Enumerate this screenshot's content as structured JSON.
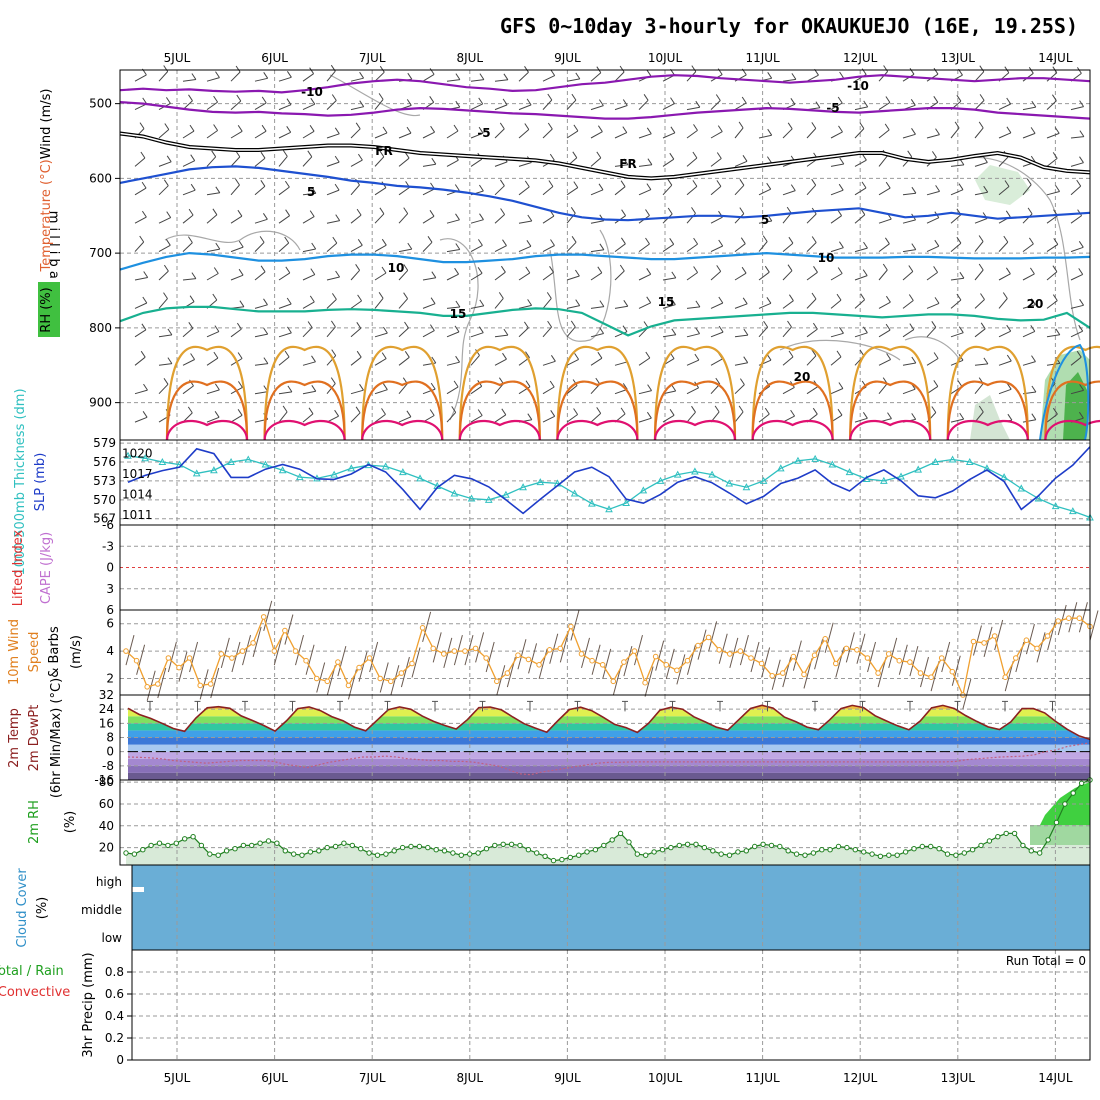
{
  "title": "GFS 0~10day 3-hourly for OKAUKUEJO (16E, 19.25S)",
  "colors": {
    "temp_m10": "#8a18b0",
    "temp_m5": "#8a18b0",
    "fr": "#000000",
    "temp_5": "#1e50d0",
    "temp_10": "#1e90e0",
    "temp_15": "#18b090",
    "temp_20": "#e0a030",
    "temp_25": "#e07020",
    "temp_30": "#e01070",
    "thickness": "#30c0c0",
    "slp": "#1e3cc8",
    "wind10m": "#f0a030",
    "lifted_zero": "#e04040",
    "rh": "#208020",
    "cloud": "#6aaed6"
  },
  "chart_data": [
    {
      "type": "line",
      "name": "upper-air",
      "title": "GFS 0~10day 3-hourly for OKAUKUEJO (16E, 19.25S)",
      "xlabels": [
        "5JUL",
        "6JUL",
        "7JUL",
        "8JUL",
        "9JUL",
        "10JUL",
        "11JUL",
        "12JUL",
        "13JUL",
        "14JUL"
      ],
      "xrange_days": [
        0,
        10
      ],
      "ylabel": "m i l l i b a r s",
      "ylabel_parts": [
        "Wind (m/s)",
        "Temperature (°C)",
        "RH (%)"
      ],
      "yticks": [
        500,
        600,
        700,
        800,
        900
      ],
      "ylim": [
        455,
        950
      ],
      "isotherm_labels": [
        "-10",
        "-10",
        "-5",
        "-5",
        "FR",
        "FR",
        "5",
        "5",
        "10",
        "10",
        "15",
        "15",
        "20"
      ],
      "isotherms": [
        {
          "label": "-10",
          "values": [
            482,
            480,
            482,
            481,
            483,
            484,
            483,
            485,
            482,
            478,
            473,
            470,
            468,
            470,
            474,
            478,
            480,
            483,
            482,
            478,
            474,
            472,
            468,
            464,
            462,
            463,
            466,
            468,
            470,
            472,
            470,
            468,
            464,
            462,
            464,
            466,
            468,
            470,
            468,
            466,
            466,
            468,
            470
          ]
        },
        {
          "label": "-5",
          "values": [
            498,
            500,
            504,
            508,
            511,
            512,
            511,
            513,
            514,
            516,
            515,
            512,
            508,
            506,
            507,
            509,
            511,
            513,
            514,
            516,
            518,
            520,
            520,
            518,
            515,
            512,
            510,
            508,
            506,
            507,
            509,
            511,
            512,
            510,
            508,
            506,
            506,
            508,
            512,
            514,
            516,
            518,
            520
          ]
        },
        {
          "label": "FR",
          "values": [
            540,
            544,
            552,
            558,
            560,
            562,
            562,
            560,
            558,
            556,
            556,
            558,
            562,
            566,
            568,
            570,
            572,
            574,
            576,
            580,
            586,
            592,
            598,
            600,
            598,
            594,
            590,
            586,
            582,
            578,
            574,
            570,
            566,
            566,
            574,
            578,
            575,
            570,
            566,
            572,
            585,
            590,
            592
          ]
        },
        {
          "label": "5",
          "values": [
            606,
            600,
            594,
            588,
            585,
            584,
            586,
            590,
            594,
            598,
            603,
            606,
            610,
            612,
            615,
            619,
            624,
            630,
            638,
            646,
            652,
            655,
            656,
            654,
            652,
            650,
            650,
            652,
            650,
            647,
            644,
            642,
            640,
            646,
            652,
            650,
            646,
            650,
            654,
            652,
            650,
            648,
            646
          ]
        },
        {
          "label": "10",
          "values": [
            722,
            713,
            705,
            700,
            702,
            706,
            710,
            710,
            708,
            704,
            702,
            702,
            704,
            708,
            712,
            712,
            710,
            708,
            704,
            702,
            702,
            704,
            706,
            708,
            708,
            706,
            704,
            702,
            700,
            702,
            704,
            706,
            706,
            706,
            705,
            705,
            706,
            707,
            707,
            707,
            706,
            706,
            705
          ]
        },
        {
          "label": "15",
          "values": [
            791,
            780,
            774,
            772,
            772,
            775,
            778,
            778,
            778,
            776,
            775,
            776,
            778,
            780,
            784,
            784,
            780,
            776,
            774,
            775,
            780,
            795,
            810,
            798,
            790,
            788,
            786,
            784,
            782,
            780,
            780,
            782,
            784,
            786,
            784,
            782,
            782,
            784,
            788,
            790,
            789,
            780,
            800
          ]
        }
      ],
      "low_level_contours": [
        "20",
        "25",
        "30"
      ],
      "rh_shading": "gray-green"
    },
    {
      "type": "line",
      "name": "thickness-slp",
      "ylabel_left": "1000-500mb Thickness (dm)",
      "ylabel_right": "SLP (mb)",
      "yticks_left": [
        567,
        570,
        573,
        576,
        579
      ],
      "yticks_right": [
        1011,
        1014,
        1017,
        1020
      ],
      "ylim_left": [
        566,
        579.5
      ],
      "series": [
        {
          "name": "thickness",
          "axis": "left",
          "values": [
            577,
            576.6,
            576,
            575.6,
            574.2,
            574.7,
            576,
            576.4,
            575.6,
            574.7,
            573.6,
            573.4,
            574,
            575,
            575.5,
            575.3,
            574.4,
            573.4,
            572.2,
            571,
            570.2,
            570,
            570.8,
            572,
            572.8,
            572.6,
            571,
            569.4,
            568.5,
            569.5,
            571.5,
            573,
            574,
            574.5,
            574,
            572.6,
            572,
            573,
            575,
            576.2,
            576.5,
            575.6,
            574.4,
            573.3,
            573,
            573.7,
            574.8,
            576,
            576.4,
            576,
            575,
            573.6,
            571.8,
            570.2,
            569,
            568.2,
            567.2
          ]
        },
        {
          "name": "slp",
          "axis": "right",
          "values": [
            1015.8,
            1016.8,
            1017.5,
            1018,
            1020.7,
            1020,
            1016.5,
            1016.5,
            1017.7,
            1018.4,
            1017.7,
            1016.3,
            1016.2,
            1017,
            1018.4,
            1017.3,
            1014.7,
            1011.8,
            1015,
            1016.8,
            1016.3,
            1015.1,
            1013.2,
            1011.2,
            1013.3,
            1015.3,
            1017.3,
            1018,
            1016.6,
            1013.3,
            1012.7,
            1014,
            1015.8,
            1016.6,
            1015.7,
            1014.2,
            1012.6,
            1013.7,
            1015.6,
            1016.4,
            1017.6,
            1015.6,
            1014.5,
            1016.5,
            1017.6,
            1016,
            1013.8,
            1013.5,
            1014.5,
            1016.2,
            1017.6,
            1015.9,
            1011.8,
            1013.8,
            1016.4,
            1018.3,
            1021
          ]
        }
      ]
    },
    {
      "type": "line",
      "name": "lifted-cape",
      "ylabel_left": "Lifted Index",
      "ylabel_right": "CAPE (J/kg)",
      "yticks": [
        -6,
        -3,
        0,
        3,
        6
      ],
      "yticklabels": [
        "6",
        "3",
        "0",
        "-3",
        "-6"
      ],
      "ylim": [
        -6,
        6
      ]
    },
    {
      "type": "line",
      "name": "wind10m",
      "ylabel_left": "10m Wind Speed & Barbs",
      "ylabel_unit": "(m/s)",
      "yticks": [
        2,
        4,
        6
      ],
      "ylim": [
        1,
        7
      ],
      "series": [
        {
          "name": "10m wind",
          "values": [
            4,
            3.3,
            1.4,
            1.6,
            3.5,
            2.8,
            3.5,
            1.5,
            1.6,
            3.8,
            3.5,
            4,
            4.6,
            6.5,
            4,
            5.5,
            4,
            3.3,
            2,
            1.8,
            3.2,
            1.5,
            2.8,
            3.5,
            2,
            1.8,
            2.4,
            3.1,
            5.7,
            4.2,
            3.8,
            4,
            4,
            4.2,
            3.5,
            1.8,
            2.4,
            3.7,
            3.4,
            3,
            4.1,
            4.2,
            5.8,
            3.8,
            3.3,
            3,
            1.8,
            3.2,
            4,
            1.7,
            3.6,
            3,
            2.6,
            3.3,
            4.4,
            5,
            4.1,
            3.8,
            4,
            3.5,
            3.1,
            2.2,
            2.4,
            3.6,
            2.3,
            3.7,
            4.9,
            3.1,
            4.2,
            4.1,
            3.5,
            2.4,
            3.8,
            3.3,
            3.2,
            2.4,
            2.1,
            3.5,
            2.5,
            0.8,
            4.7,
            4.6,
            5.1,
            2.1,
            3.5,
            4.8,
            4.2,
            5.1,
            6.2,
            6.4,
            6.4,
            5.8
          ]
        }
      ]
    },
    {
      "type": "area",
      "name": "temp2m",
      "ylabel_parts": [
        "2m Temp",
        "2m DewPt",
        "(6hr Min/Max) (°C)"
      ],
      "yticks": [
        -16,
        -8,
        0,
        8,
        16,
        24,
        32
      ],
      "ylim": [
        -16,
        32
      ],
      "series": [
        {
          "name": "2m temp",
          "values": [
            24.5,
            21,
            18.8,
            16,
            13.1,
            11.5,
            19,
            24.8,
            25.4,
            24.5,
            20.2,
            17.6,
            14.8,
            11.6,
            17.4,
            24.3,
            25.3,
            23.2,
            19.8,
            17.5,
            13.9,
            11.8,
            17.7,
            23.7,
            25.3,
            23.9,
            20.1,
            17.1,
            14.8,
            12.8,
            18.1,
            24.9,
            25.2,
            23.6,
            19.6,
            15.8,
            13.3,
            11,
            17.6,
            23.8,
            25.1,
            23.1,
            19.4,
            15.4,
            13.6,
            10.9,
            16,
            23.4,
            25.1,
            24,
            19.7,
            16.8,
            13.8,
            12.2,
            18.3,
            24.4,
            26.2,
            24.6,
            19.5,
            17,
            13.9,
            12.4,
            18,
            24.3,
            26.1,
            24.9,
            20.3,
            17.4,
            14.6,
            12.4,
            17.3,
            24.7,
            26.1,
            24.4,
            20.4,
            17.1,
            14,
            12.5,
            16.8,
            24.3,
            24.3,
            21.9,
            17,
            12.6,
            9,
            6.9
          ]
        },
        {
          "name": "2m dewpoint",
          "values": [
            -3,
            -3.2,
            -3.5,
            -4,
            -5,
            -5.5,
            -6,
            -6.5,
            -6,
            -5.5,
            -5,
            -5,
            -5,
            -5.5,
            -7,
            -8,
            -9,
            -7.5,
            -6,
            -5,
            -4,
            -3,
            -3,
            -2.5,
            -3,
            -4,
            -4.5,
            -5,
            -5,
            -5.5,
            -5.5,
            -6,
            -7,
            -8,
            -10,
            -12.5,
            -13,
            -11.5,
            -10.5,
            -9.5,
            -8.5,
            -7.5,
            -6.5,
            -6,
            -6,
            -5.8,
            -5.8,
            -5.8,
            -5.8,
            -5.8,
            -5.8,
            -5.8,
            -5.8,
            -5.8,
            -5.8,
            -5.8,
            -5.8,
            -5.8,
            -5.8,
            -5.8,
            -5.8,
            -5.8,
            -5.8,
            -5.8,
            -5.8,
            -5.8,
            -5.8,
            -5.8,
            -5.8,
            -5.8,
            -5.8,
            -5.8,
            -5.8,
            -5.8,
            -5.5,
            -4.5,
            -4,
            -3.5,
            -3,
            -2.8,
            -2.5,
            -1.8,
            0,
            1,
            3,
            4,
            5
          ]
        }
      ]
    },
    {
      "type": "area",
      "name": "rh2m",
      "ylabel_parts": [
        "2m RH",
        "(%)"
      ],
      "yticks": [
        20,
        40,
        60,
        80
      ],
      "ylim": [
        4,
        80
      ],
      "series": [
        {
          "name": "2m RH",
          "values": [
            15,
            14,
            18,
            22,
            24,
            22,
            24,
            28,
            30,
            22,
            14,
            13,
            17,
            19,
            22,
            22,
            24,
            26,
            24,
            17,
            14,
            13,
            16,
            17,
            20,
            21,
            24,
            22,
            19,
            15,
            13,
            14,
            17,
            20,
            21,
            21,
            20,
            18,
            17,
            15,
            13,
            14,
            15,
            19,
            22,
            23,
            23,
            22,
            18,
            15,
            12,
            8,
            9,
            11,
            13,
            16,
            18,
            22,
            27,
            33,
            25,
            14,
            13,
            16,
            18,
            20,
            22,
            23,
            23,
            20,
            17,
            14,
            13,
            16,
            17,
            21,
            23,
            22,
            21,
            17,
            14,
            13,
            15,
            18,
            18,
            21,
            20,
            18,
            16,
            14,
            12,
            13,
            13,
            16,
            19,
            21,
            21,
            19,
            14,
            13,
            15,
            18,
            22,
            26,
            30,
            33,
            33,
            22,
            17,
            15,
            27,
            43,
            60,
            70,
            79,
            82
          ]
        }
      ]
    },
    {
      "type": "area",
      "name": "cloud-cover",
      "ylabel_parts": [
        "Cloud Cover",
        "(%)"
      ],
      "yticklabels": [
        "high",
        "middle",
        "low"
      ]
    },
    {
      "type": "bar",
      "name": "precip",
      "ylabel_parts": [
        "Total / Rain",
        "Convective",
        "3hr Precip (mm)"
      ],
      "yticks": [
        0,
        0.2,
        0.4,
        0.6,
        0.8
      ],
      "ylim": [
        0,
        1.0
      ],
      "values": [],
      "annotation": "Run Total = 0"
    }
  ]
}
